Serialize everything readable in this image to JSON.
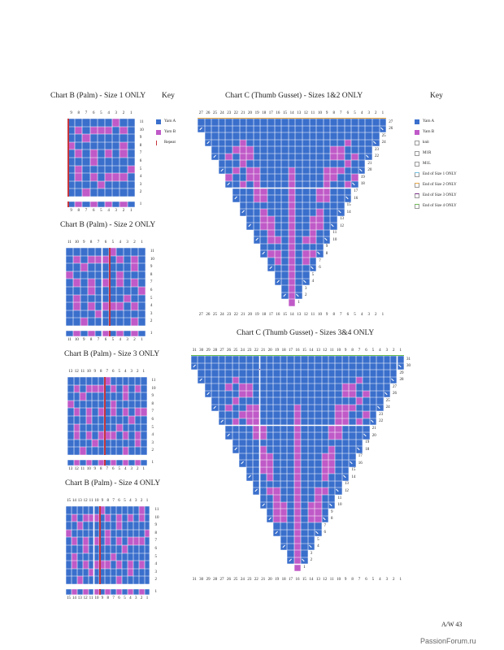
{
  "colors": {
    "yarn_a": "#3a6fcc",
    "yarn_b": "#c05ac8",
    "repeat": "#c7363c",
    "knit": "#ffffff",
    "size1": "#6cc3e8",
    "size2": "#f0a83a",
    "size3": "#7a2a86",
    "size4": "#6cbf4f"
  },
  "palm_charts": [
    {
      "id": "palm-size-1",
      "title": "Chart B (Palm) - Size 1 ONLY",
      "cols": 9,
      "col_labels": [
        "9",
        "8",
        "7",
        "6",
        "5",
        "4",
        "3",
        "2",
        "1"
      ],
      "row_labels": [
        "11",
        "10",
        "9",
        "8",
        "7",
        "6",
        "5",
        "4",
        "3",
        "2"
      ],
      "last_row_label": "1",
      "repeat_col": 0
    },
    {
      "id": "palm-size-2",
      "title": "Chart B (Palm) - Size 2 ONLY",
      "cols": 11,
      "col_labels": [
        "11",
        "10",
        "9",
        "8",
        "7",
        "6",
        "5",
        "4",
        "3",
        "2",
        "1"
      ],
      "row_labels": [
        "11",
        "10",
        "9",
        "8",
        "7",
        "6",
        "5",
        "4",
        "3",
        "2"
      ],
      "last_row_label": "1",
      "repeat_col": 6
    },
    {
      "id": "palm-size-3",
      "title": "Chart B (Palm) - Size 3 ONLY",
      "cols": 13,
      "col_labels": [
        "13",
        "12",
        "11",
        "10",
        "9",
        "8",
        "7",
        "6",
        "5",
        "4",
        "3",
        "2",
        "1"
      ],
      "row_labels": [
        "11",
        "10",
        "9",
        "8",
        "7",
        "6",
        "5",
        "4",
        "3",
        "2"
      ],
      "last_row_label": "1",
      "repeat_col": 6
    },
    {
      "id": "palm-size-4",
      "title": "Chart B (Palm) - Size 4 ONLY",
      "cols": 15,
      "col_labels": [
        "15",
        "14",
        "13",
        "12",
        "11",
        "10",
        "9",
        "8",
        "7",
        "6",
        "5",
        "4",
        "3",
        "2",
        "1"
      ],
      "row_labels": [
        "11",
        "10",
        "9",
        "8",
        "7",
        "6",
        "5",
        "4",
        "3",
        "2"
      ],
      "last_row_label": "1",
      "repeat_col": 6
    }
  ],
  "palm_key": {
    "title": "Key",
    "items": [
      {
        "label": "Yarn A",
        "icon": "yarn-a-swatch"
      },
      {
        "label": "Yarn B",
        "icon": "yarn-b-swatch"
      },
      {
        "label": "Repeat",
        "icon": "repeat-line"
      }
    ]
  },
  "gusset_charts": [
    {
      "id": "gusset-size-12",
      "title": "Chart C (Thumb Gusset) - Sizes 1&2 ONLY",
      "cols": 27,
      "rows": 27
    },
    {
      "id": "gusset-size-34",
      "title": "Chart C (Thumb Gusset) - Sizes 3&4 ONLY",
      "cols": 31,
      "rows": 31
    }
  ],
  "gusset_key": {
    "title": "Key",
    "items": [
      {
        "label": "Yarn A",
        "icon": "yarn-a-swatch"
      },
      {
        "label": "Yarn B",
        "icon": "yarn-b-swatch"
      },
      {
        "label": "knit",
        "icon": "knit-swatch"
      },
      {
        "label": "M1R",
        "icon": "m1r-icon"
      },
      {
        "label": "M1L",
        "icon": "m1l-icon"
      },
      {
        "label": "End of Size 1 ONLY",
        "icon": "size-1-marker"
      },
      {
        "label": "End of Size 2 ONLY",
        "icon": "size-2-marker"
      },
      {
        "label": "End of Size 3 ONLY",
        "icon": "size-3-marker"
      },
      {
        "label": "End of Size 4 ONLY",
        "icon": "size-4-marker"
      }
    ]
  },
  "footer": {
    "page": "A/W 43"
  },
  "watermark": "PassionForum.ru"
}
